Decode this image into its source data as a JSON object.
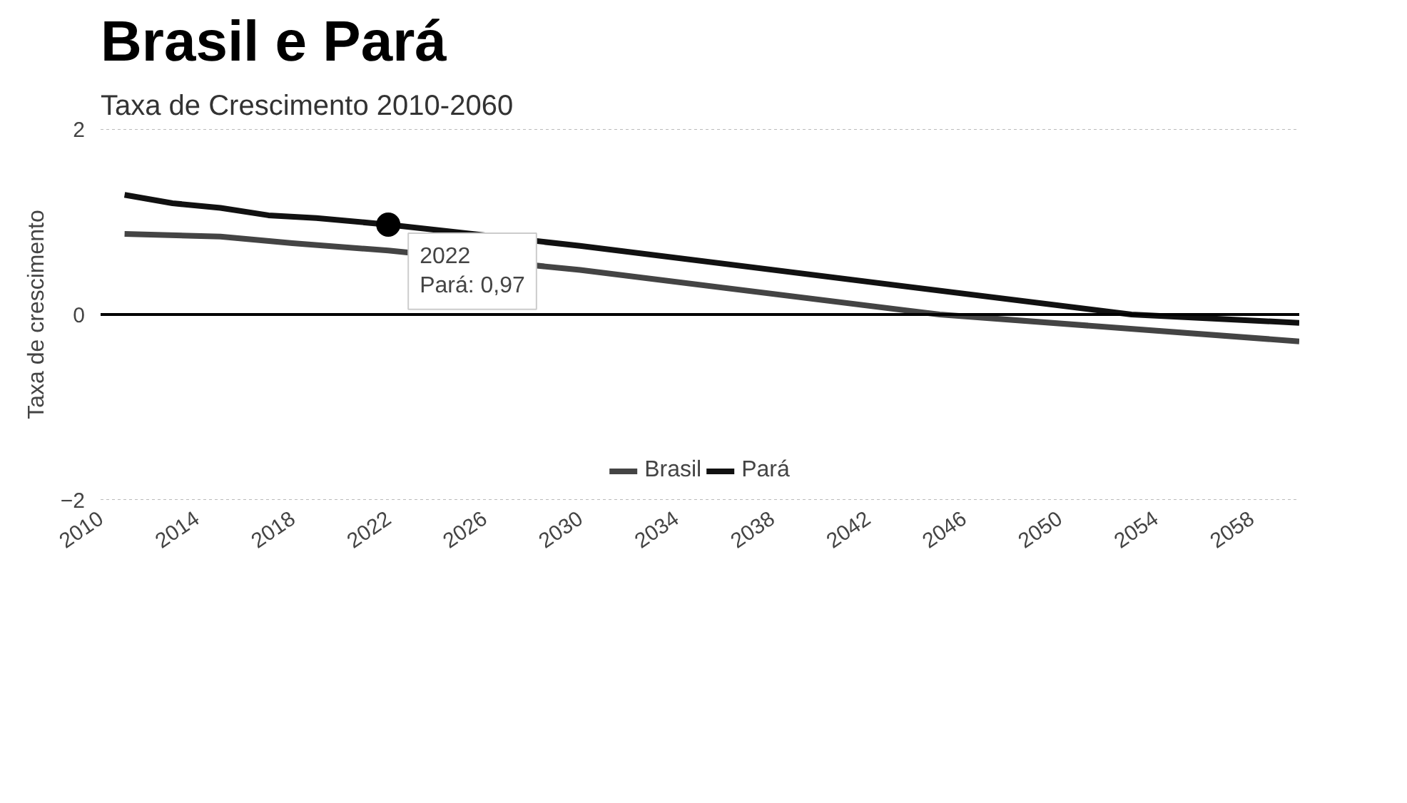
{
  "chart_data": {
    "type": "line",
    "title": "Brasil e Pará",
    "subtitle": "Taxa de Crescimento 2010-2060",
    "ylabel": "Taxa de crescimento",
    "xlim": [
      2010,
      2060
    ],
    "xticks": [
      2010,
      2014,
      2018,
      2022,
      2026,
      2030,
      2034,
      2038,
      2042,
      2046,
      2050,
      2054,
      2058
    ],
    "ylim": [
      -2,
      2
    ],
    "yticks": [
      -2,
      0,
      2
    ],
    "grid": "y",
    "legend": "bottom",
    "marker": "none",
    "line_style": "solid",
    "series": [
      {
        "name": "Brasil",
        "color": "#444444",
        "x": [
          2011,
          2015,
          2018,
          2022,
          2030,
          2045,
          2060
        ],
        "values": [
          0.87,
          0.84,
          0.77,
          0.69,
          0.48,
          0.0,
          -0.29
        ]
      },
      {
        "name": "Pará",
        "color": "#111111",
        "x": [
          2011,
          2013,
          2015,
          2017,
          2019,
          2022,
          2030,
          2053,
          2060
        ],
        "values": [
          1.29,
          1.2,
          1.15,
          1.07,
          1.04,
          0.97,
          0.74,
          0.0,
          -0.09
        ]
      }
    ],
    "annotations": [
      {
        "text": "2022\nPará: 0,97",
        "x": 2022,
        "y": 0.97
      }
    ]
  }
}
